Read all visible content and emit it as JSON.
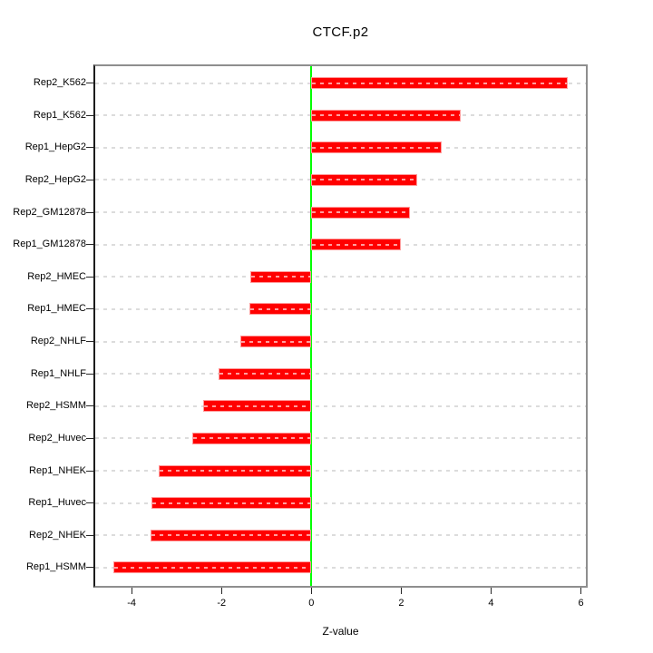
{
  "title": "CTCF.p2",
  "chart_data": {
    "type": "bar",
    "orientation": "horizontal",
    "title": "CTCF.p2",
    "xlabel": "Z-value",
    "categories_top_to_bottom": [
      "Rep2_K562",
      "Rep1_K562",
      "Rep1_HepG2",
      "Rep2_HepG2",
      "Rep2_GM12878",
      "Rep1_GM12878",
      "Rep2_HMEC",
      "Rep1_HMEC",
      "Rep2_NHLF",
      "Rep1_NHLF",
      "Rep2_HSMM",
      "Rep2_Huvec",
      "Rep1_NHEK",
      "Rep1_Huvec",
      "Rep2_NHEK",
      "Rep1_HSMM"
    ],
    "values": [
      5.71,
      3.33,
      2.91,
      2.36,
      2.2,
      2.0,
      -1.35,
      -1.38,
      -1.58,
      -2.06,
      -2.4,
      -2.65,
      -3.39,
      -3.55,
      -3.57,
      -4.4
    ],
    "xticks": [
      -4,
      -2,
      0,
      2,
      4,
      6
    ],
    "xlim": [
      -4.81,
      6.11
    ],
    "grid": "dashed-horizontal",
    "legend_position": "none",
    "bar_color": "#ff0000",
    "bar_edge_color": "#ff9a9a",
    "bar_dash_texture_color": "#ffb9b9",
    "zero_line_color": "#00ff00",
    "grid_color": "#dcdcdc",
    "box_color": "#8e8e8e"
  }
}
